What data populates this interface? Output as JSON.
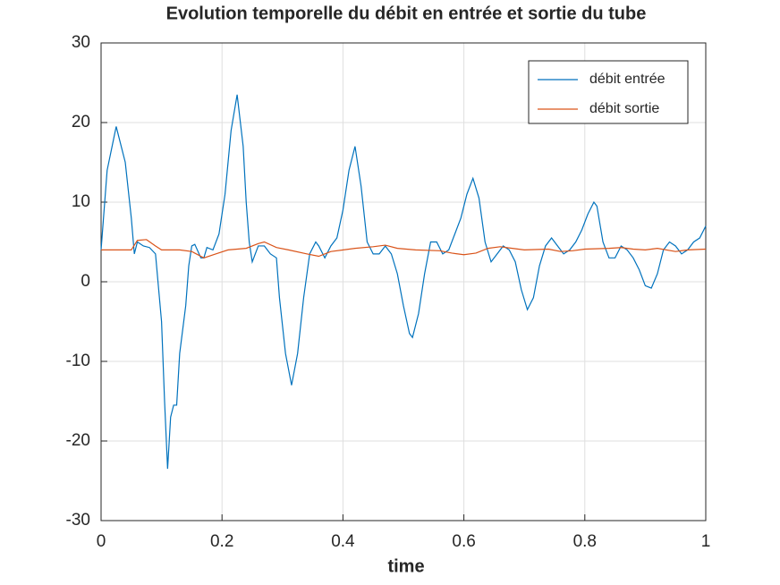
{
  "chart_data": {
    "type": "line",
    "title": "Evolution temporelle du débit en entrée et sortie du tube",
    "xlabel": "time",
    "xlim": [
      0,
      1
    ],
    "xticks": [
      0,
      0.2,
      0.4,
      0.6,
      0.8,
      1
    ],
    "ylim": [
      -30,
      30
    ],
    "yticks": [
      -30,
      -20,
      -10,
      0,
      10,
      20,
      30
    ],
    "grid": true,
    "legend": "top-right",
    "series": [
      {
        "name": "débit entrée",
        "color": "#0072bd",
        "x": [
          0,
          0.01,
          0.025,
          0.04,
          0.05,
          0.055,
          0.06,
          0.07,
          0.08,
          0.09,
          0.1,
          0.105,
          0.11,
          0.115,
          0.12,
          0.125,
          0.13,
          0.14,
          0.145,
          0.15,
          0.155,
          0.165,
          0.17,
          0.175,
          0.185,
          0.195,
          0.205,
          0.215,
          0.225,
          0.235,
          0.24,
          0.245,
          0.25,
          0.26,
          0.27,
          0.28,
          0.29,
          0.295,
          0.305,
          0.315,
          0.325,
          0.335,
          0.345,
          0.355,
          0.36,
          0.37,
          0.38,
          0.39,
          0.4,
          0.41,
          0.42,
          0.43,
          0.44,
          0.45,
          0.46,
          0.47,
          0.48,
          0.49,
          0.5,
          0.51,
          0.515,
          0.525,
          0.535,
          0.545,
          0.555,
          0.565,
          0.575,
          0.585,
          0.595,
          0.605,
          0.615,
          0.625,
          0.635,
          0.645,
          0.655,
          0.665,
          0.675,
          0.685,
          0.695,
          0.705,
          0.715,
          0.725,
          0.735,
          0.745,
          0.755,
          0.765,
          0.775,
          0.785,
          0.795,
          0.805,
          0.815,
          0.82,
          0.83,
          0.84,
          0.85,
          0.86,
          0.87,
          0.88,
          0.89,
          0.9,
          0.91,
          0.92,
          0.93,
          0.94,
          0.95,
          0.96,
          0.97,
          0.98,
          0.99,
          1
        ],
        "values": [
          4,
          14,
          19.5,
          15,
          8,
          3.5,
          5,
          4.5,
          4.3,
          3.5,
          -5,
          -15,
          -23.5,
          -17,
          -15.5,
          -15.5,
          -9,
          -3,
          2,
          4.5,
          4.7,
          3,
          3,
          4.3,
          4,
          6,
          11,
          19,
          23.5,
          17,
          10,
          5,
          2.5,
          4.5,
          4.5,
          3.5,
          3,
          -2,
          -9,
          -13,
          -9,
          -2,
          3.5,
          5,
          4.5,
          3,
          4.5,
          5.5,
          9,
          14,
          17,
          12,
          5,
          3.5,
          3.5,
          4.5,
          3.5,
          1,
          -3,
          -6.5,
          -7,
          -4,
          1,
          5,
          5,
          3.5,
          4,
          6,
          8,
          11,
          13,
          10.5,
          5,
          2.5,
          3.5,
          4.5,
          4,
          2.5,
          -1,
          -3.5,
          -2,
          2,
          4.5,
          5.5,
          4.5,
          3.5,
          4,
          5,
          6.5,
          8.5,
          10,
          9.5,
          5,
          3,
          3,
          4.5,
          4,
          3,
          1.5,
          -0.5,
          -0.8,
          1,
          4,
          5,
          4.5,
          3.5,
          4,
          5,
          5.5,
          7
        ]
      },
      {
        "name": "débit sortie",
        "color": "#d95319",
        "x": [
          0,
          0.05,
          0.06,
          0.075,
          0.09,
          0.1,
          0.13,
          0.15,
          0.17,
          0.19,
          0.21,
          0.24,
          0.26,
          0.27,
          0.29,
          0.31,
          0.34,
          0.36,
          0.38,
          0.42,
          0.45,
          0.47,
          0.49,
          0.52,
          0.56,
          0.58,
          0.6,
          0.62,
          0.64,
          0.66,
          0.68,
          0.7,
          0.74,
          0.76,
          0.78,
          0.8,
          0.84,
          0.86,
          0.88,
          0.9,
          0.92,
          0.95,
          0.97,
          1
        ],
        "values": [
          4,
          4,
          5.2,
          5.3,
          4.5,
          4,
          4,
          3.8,
          3,
          3.5,
          4,
          4.2,
          4.8,
          5,
          4.3,
          4,
          3.5,
          3.2,
          3.8,
          4.2,
          4.4,
          4.6,
          4.2,
          4,
          3.9,
          3.6,
          3.4,
          3.6,
          4.2,
          4.4,
          4.2,
          4,
          4.1,
          3.8,
          3.9,
          4.1,
          4.2,
          4.3,
          4.1,
          4,
          4.2,
          3.8,
          4,
          4.1
        ]
      }
    ]
  }
}
